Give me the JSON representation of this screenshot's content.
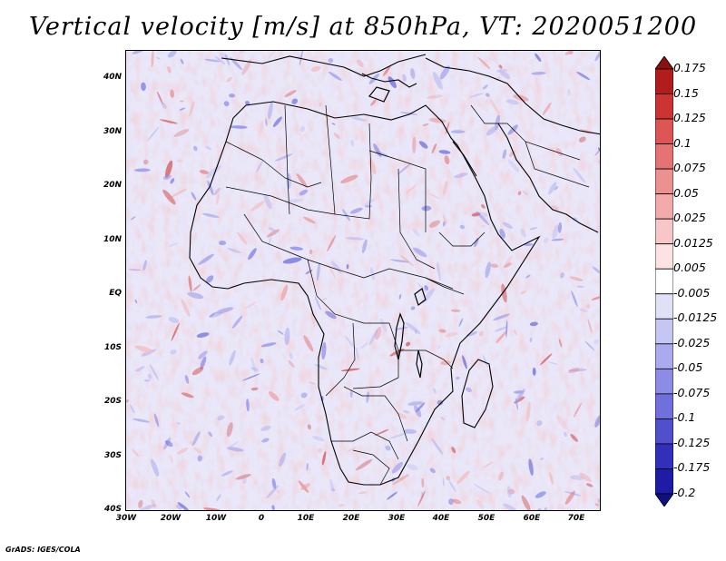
{
  "title": "Vertical velocity [m/s] at 850hPa, VT: 2020051200",
  "map": {
    "region": "Africa",
    "lat_ticks": [
      "40N",
      "30N",
      "20N",
      "10N",
      "EQ",
      "10S",
      "20S",
      "30S",
      "40S"
    ],
    "lon_ticks": [
      "30W",
      "20W",
      "10W",
      "0",
      "10E",
      "20E",
      "30E",
      "40E",
      "50E",
      "60E",
      "70E"
    ]
  },
  "colorbar": {
    "labels": [
      "0.175",
      "0.15",
      "0.125",
      "0.1",
      "0.075",
      "0.05",
      "0.025",
      "0.0125",
      "0.005",
      "-0.005",
      "-0.0125",
      "-0.025",
      "-0.05",
      "-0.075",
      "-0.1",
      "-0.125",
      "-0.175",
      "-0.2"
    ],
    "colors": [
      "#8c1010",
      "#b31c1c",
      "#cc3333",
      "#dd5555",
      "#e67373",
      "#ec9090",
      "#f2aaaa",
      "#f7c6c6",
      "#fce2e2",
      "#ffffff",
      "#e0e0f7",
      "#c6c6f2",
      "#aaaaee",
      "#8c8ce6",
      "#7070dd",
      "#5050cc",
      "#3030bb",
      "#1c1ca6",
      "#101080"
    ]
  },
  "credit": "GrADS: IGES/COLA"
}
